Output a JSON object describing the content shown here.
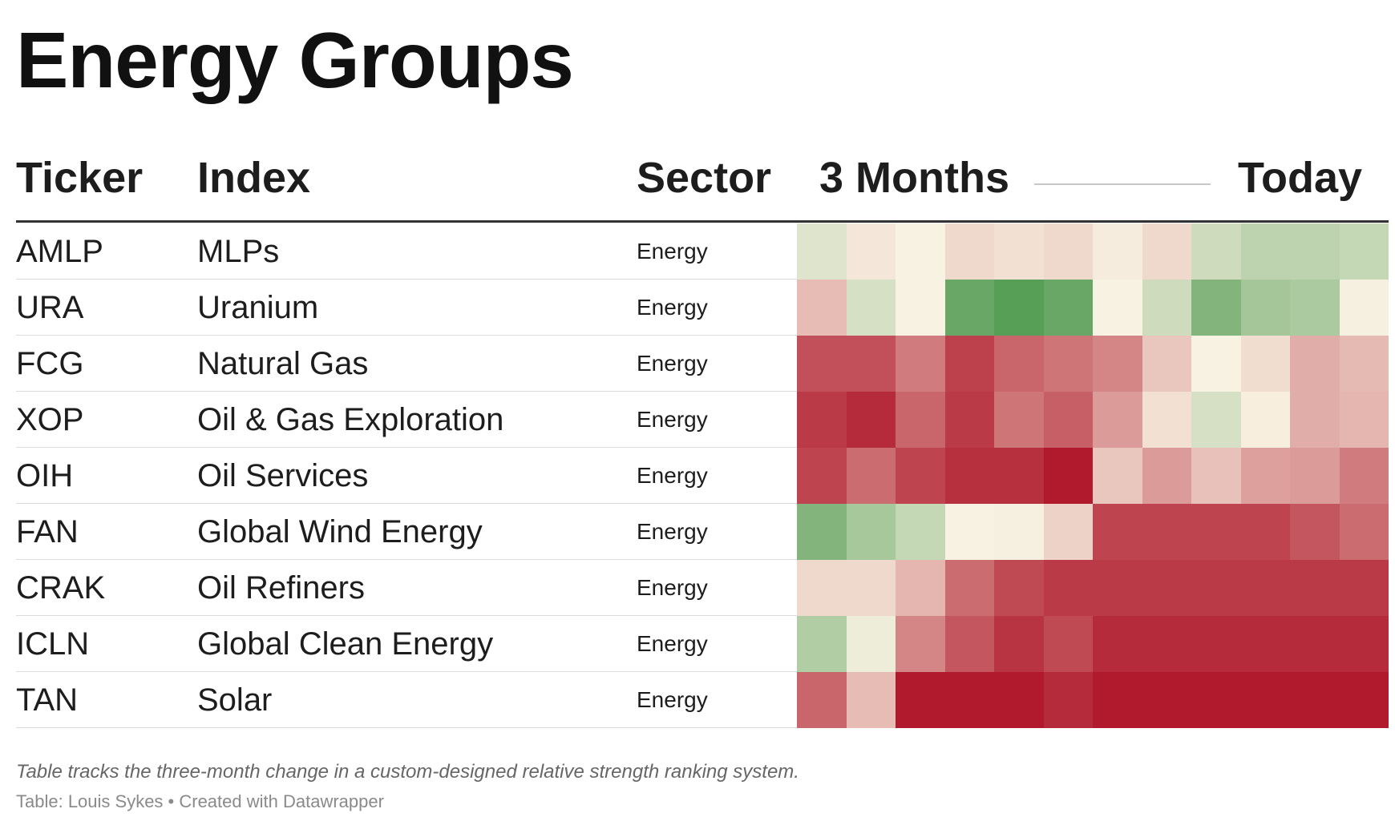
{
  "title": "Energy Groups",
  "columns": {
    "ticker": "Ticker",
    "index": "Index",
    "sector": "Sector",
    "start": "3 Months",
    "end": "Today"
  },
  "rows": [
    {
      "ticker": "AMLP",
      "index": "MLPs",
      "sector": "Energy"
    },
    {
      "ticker": "URA",
      "index": "Uranium",
      "sector": "Energy"
    },
    {
      "ticker": "FCG",
      "index": "Natural Gas",
      "sector": "Energy"
    },
    {
      "ticker": "XOP",
      "index": "Oil & Gas Exploration",
      "sector": "Energy"
    },
    {
      "ticker": "OIH",
      "index": "Oil Services",
      "sector": "Energy"
    },
    {
      "ticker": "FAN",
      "index": "Global Wind Energy",
      "sector": "Energy"
    },
    {
      "ticker": "CRAK",
      "index": "Oil Refiners",
      "sector": "Energy"
    },
    {
      "ticker": "ICLN",
      "index": "Global Clean Energy",
      "sector": "Energy"
    },
    {
      "ticker": "TAN",
      "index": "Solar",
      "sector": "Energy"
    }
  ],
  "notes": "Table tracks the three-month change in a custom-designed relative strength ranking system.",
  "source": "Table: Louis Sykes • Created with Datawrapper",
  "chart_data": {
    "type": "heatmap",
    "y": [
      "AMLP",
      "URA",
      "FCG",
      "XOP",
      "OIH",
      "FAN",
      "CRAK",
      "ICLN",
      "TAN"
    ],
    "columns_count": 12,
    "color_scale": {
      "low": "#b01a2c",
      "mid": "#f8f2e2",
      "high": "#4f9a4f"
    },
    "values": [
      [
        0.15,
        -0.05,
        0.0,
        -0.12,
        -0.08,
        -0.12,
        -0.03,
        -0.12,
        0.25,
        0.35,
        0.35,
        0.3
      ],
      [
        -0.25,
        0.2,
        0.0,
        0.85,
        0.95,
        0.85,
        0.0,
        0.25,
        0.7,
        0.5,
        0.45,
        0.02
      ],
      [
        -0.75,
        -0.75,
        -0.55,
        -0.82,
        -0.65,
        -0.58,
        -0.5,
        -0.2,
        0.0,
        -0.1,
        -0.32,
        -0.26
      ],
      [
        -0.85,
        -0.92,
        -0.65,
        -0.85,
        -0.58,
        -0.68,
        -0.4,
        -0.08,
        0.2,
        -0.02,
        -0.32,
        -0.28
      ],
      [
        -0.8,
        -0.62,
        -0.8,
        -0.9,
        -0.9,
        -1.0,
        -0.2,
        -0.4,
        -0.22,
        -0.38,
        -0.4,
        -0.55
      ],
      [
        0.7,
        0.48,
        0.3,
        0.0,
        0.02,
        -0.15,
        -0.8,
        -0.8,
        -0.8,
        -0.8,
        -0.72,
        -0.62
      ],
      [
        -0.12,
        -0.12,
        -0.28,
        -0.62,
        -0.78,
        -0.85,
        -0.85,
        -0.85,
        -0.85,
        -0.85,
        -0.85,
        -0.85
      ],
      [
        0.42,
        0.06,
        -0.5,
        -0.72,
        -0.88,
        -0.78,
        -0.92,
        -0.92,
        -0.92,
        -0.92,
        -0.92,
        -0.92
      ],
      [
        -0.65,
        -0.25,
        -1.0,
        -1.0,
        -1.0,
        -0.92,
        -1.0,
        -1.0,
        -1.0,
        -1.0,
        -1.0,
        -1.0
      ]
    ],
    "legend": "column headers: 3 Months → Today"
  }
}
